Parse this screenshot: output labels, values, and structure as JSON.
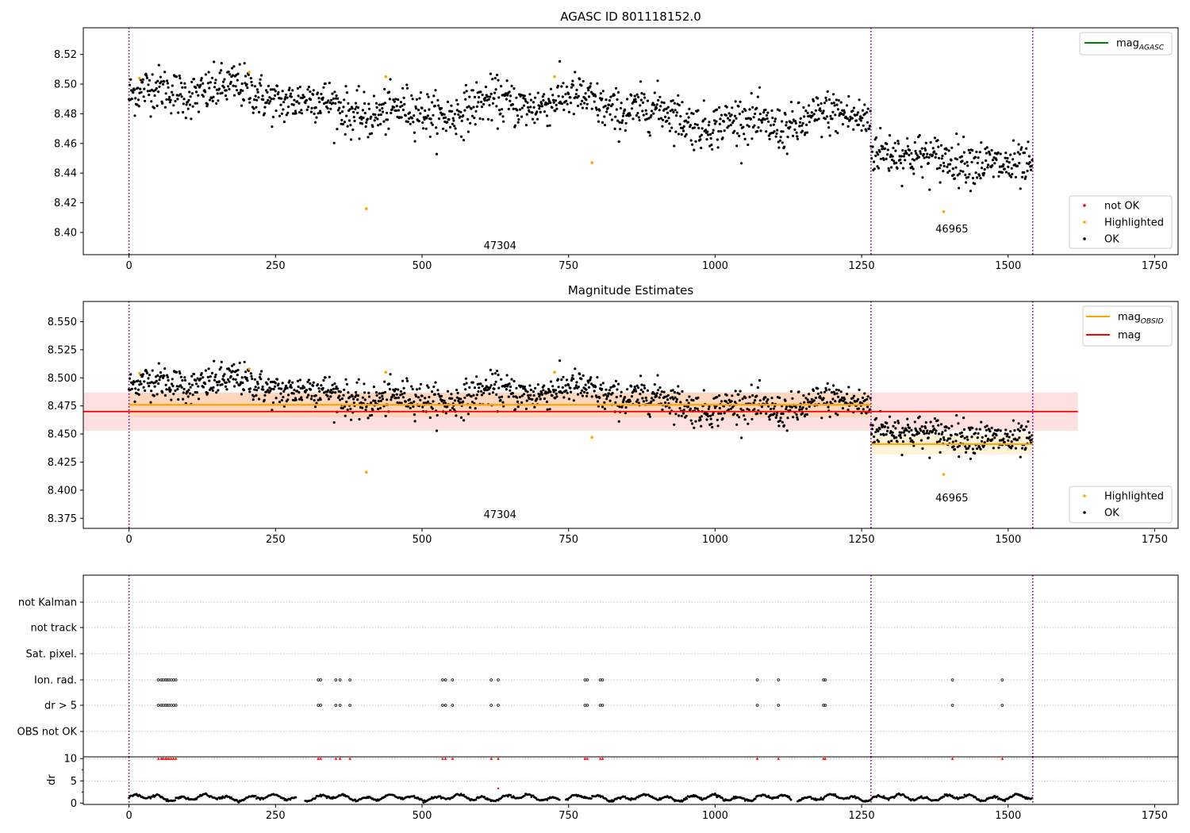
{
  "figure": {
    "top_title": "AGASC ID 801118152.0",
    "middle_title": "Magnitude Estimates"
  },
  "chart_data": [
    {
      "type": "scatter",
      "title": "AGASC ID 801118152.0",
      "xlim": [
        -78,
        1790
      ],
      "ylim": [
        8.385,
        8.538
      ],
      "xticks": [
        0,
        250,
        500,
        750,
        1000,
        1250,
        1500,
        1750
      ],
      "yticks": [
        8.4,
        8.42,
        8.44,
        8.46,
        8.48,
        8.5,
        8.52
      ],
      "ytick_decimals": 2,
      "vlines": [
        0,
        1266,
        1542
      ],
      "annotations": [
        {
          "text": "47304",
          "x": 633,
          "y": 8.391
        },
        {
          "text": "46965",
          "x": 1404,
          "y": 8.402
        }
      ],
      "legend_lines": [
        {
          "label": "mag",
          "subscript": "AGASC",
          "color": "#008000"
        }
      ],
      "legend_markers": [
        {
          "label": "not OK",
          "color": "#ff0000"
        },
        {
          "label": "Highlighted",
          "color": "#ffa500"
        },
        {
          "label": "OK",
          "color": "#000000"
        }
      ],
      "segments": [
        {
          "x_range": [
            0,
            1266
          ],
          "mean": 8.476,
          "trend": -0.016
        },
        {
          "x_range": [
            1266,
            1542
          ],
          "mean": 8.441,
          "trend": -0.012
        }
      ],
      "highlighted": [
        {
          "x": 18,
          "y": 8.504
        },
        {
          "x": 205,
          "y": 8.508
        },
        {
          "x": 405,
          "y": 8.416
        },
        {
          "x": 438,
          "y": 8.505
        },
        {
          "x": 726,
          "y": 8.505
        },
        {
          "x": 790,
          "y": 8.447
        },
        {
          "x": 1390,
          "y": 8.414
        }
      ]
    },
    {
      "type": "scatter",
      "title": "Magnitude Estimates",
      "xlim": [
        -78,
        1790
      ],
      "ylim": [
        8.366,
        8.568
      ],
      "xticks": [
        0,
        250,
        500,
        750,
        1000,
        1250,
        1500,
        1750
      ],
      "yticks": [
        8.375,
        8.4,
        8.425,
        8.45,
        8.475,
        8.5,
        8.525,
        8.55
      ],
      "ytick_decimals": 3,
      "vlines": [
        0,
        1266,
        1542
      ],
      "annotations": [
        {
          "text": "47304",
          "x": 633,
          "y": 8.378
        },
        {
          "text": "46965",
          "x": 1404,
          "y": 8.393
        }
      ],
      "obs_mags": [
        {
          "x_range": [
            0,
            1266
          ],
          "mag": 8.476,
          "std": 0.011,
          "color": "#ffa500"
        },
        {
          "x_range": [
            1266,
            1542
          ],
          "mag": 8.441,
          "std": 0.009,
          "color": "#ffa500"
        }
      ],
      "overall_mag": {
        "x_range": [
          -78,
          1619
        ],
        "mag": 8.47,
        "std": 0.017,
        "color": "#ff0000"
      },
      "legend_lines": [
        {
          "label": "mag",
          "subscript": "OBSID",
          "color": "#ffa500"
        },
        {
          "label": "mag",
          "subscript": "",
          "color": "#ff0000"
        }
      ],
      "legend_markers": [
        {
          "label": "Highlighted",
          "color": "#ffa500"
        },
        {
          "label": "OK",
          "color": "#000000"
        }
      ],
      "segments": [
        {
          "x_range": [
            0,
            1266
          ],
          "mean": 8.476,
          "trend": -0.016
        },
        {
          "x_range": [
            1266,
            1542
          ],
          "mean": 8.441,
          "trend": -0.012
        }
      ],
      "highlighted": [
        {
          "x": 18,
          "y": 8.504
        },
        {
          "x": 205,
          "y": 8.508
        },
        {
          "x": 405,
          "y": 8.416
        },
        {
          "x": 438,
          "y": 8.505
        },
        {
          "x": 726,
          "y": 8.505
        },
        {
          "x": 790,
          "y": 8.447
        },
        {
          "x": 1390,
          "y": 8.414
        }
      ]
    },
    {
      "type": "scatter",
      "title": "",
      "xlim": [
        -78,
        1790
      ],
      "categories": [
        "not Kalman",
        "not track",
        "Sat. pixel.",
        "Ion. rad.",
        "dr > 5",
        "OBS not OK"
      ],
      "flag_x": [
        50,
        55,
        58,
        62,
        65,
        68,
        72,
        76,
        80,
        323,
        327,
        353,
        360,
        377,
        535,
        540,
        552,
        618,
        630,
        778,
        782,
        804,
        808,
        1072,
        1108,
        1185,
        1188,
        1405,
        1490
      ],
      "vlines": [
        0,
        1266,
        1542
      ]
    },
    {
      "type": "scatter",
      "title": "",
      "xlim": [
        -78,
        1790
      ],
      "ylim": [
        -0.3,
        10.4
      ],
      "yticks": [
        0,
        5,
        10
      ],
      "ylabel": "dr",
      "xticks": [
        0,
        250,
        500,
        750,
        1000,
        1250,
        1500,
        1750
      ],
      "vlines": [
        0,
        1266,
        1542
      ],
      "clipped_value": 10,
      "outlier": {
        "x": 630,
        "y": 3.3
      }
    }
  ]
}
